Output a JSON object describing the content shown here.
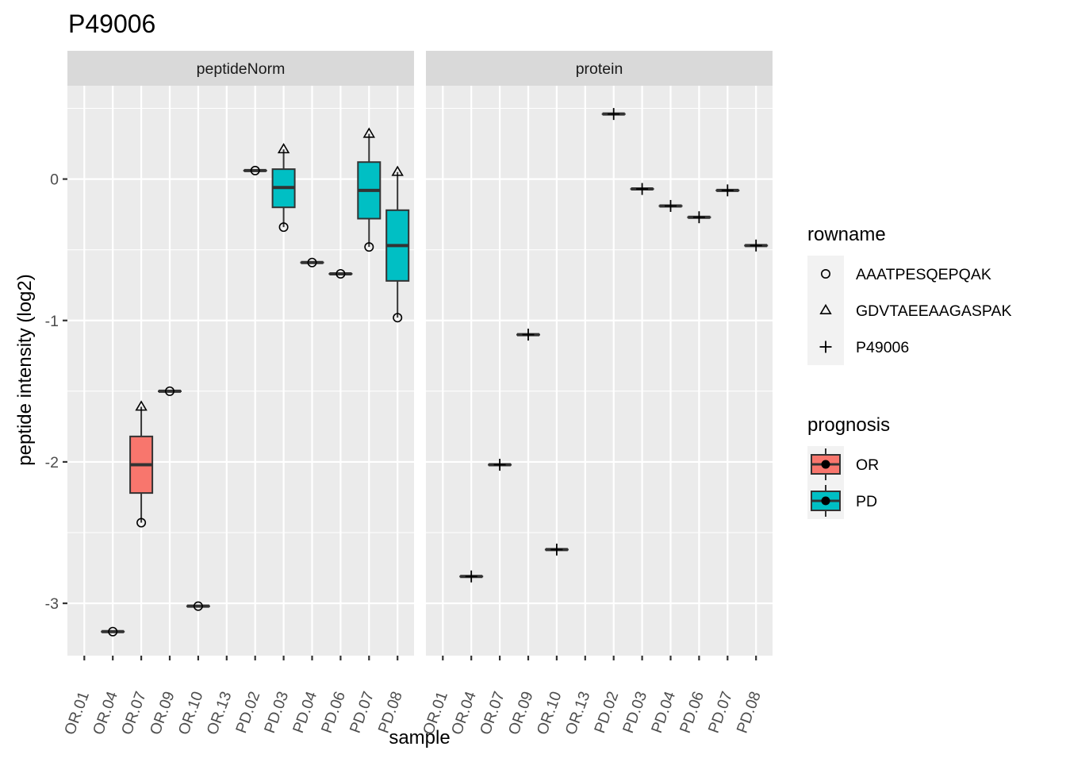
{
  "chart_data": {
    "type": "box",
    "title": "P49006",
    "xlabel": "sample",
    "ylabel": "peptide intensity (log2)",
    "ylim": [
      -3.37,
      0.66
    ],
    "y_ticks": [
      0,
      -1,
      -2,
      -3
    ],
    "y_tick_labels": [
      "0",
      "-1",
      "-2",
      "-3"
    ],
    "categories": [
      "OR.01",
      "OR.04",
      "OR.07",
      "OR.09",
      "OR.10",
      "OR.13",
      "PD.02",
      "PD.03",
      "PD.04",
      "PD.06",
      "PD.07",
      "PD.08"
    ],
    "colors": {
      "OR": "#f8766d",
      "PD": "#00bfc4"
    },
    "facets": [
      {
        "label": "peptideNorm",
        "boxes": [
          {
            "sample": "OR.04",
            "group": "OR",
            "min": -3.2,
            "q1": -3.2,
            "median": -3.2,
            "q3": -3.2,
            "max": -3.2
          },
          {
            "sample": "OR.07",
            "group": "OR",
            "min": -2.43,
            "q1": -2.22,
            "median": -2.02,
            "q3": -1.82,
            "max": -1.61
          },
          {
            "sample": "OR.09",
            "group": "OR",
            "min": -1.5,
            "q1": -1.5,
            "median": -1.5,
            "q3": -1.5,
            "max": -1.5
          },
          {
            "sample": "OR.10",
            "group": "OR",
            "min": -3.02,
            "q1": -3.02,
            "median": -3.02,
            "q3": -3.02,
            "max": -3.02
          },
          {
            "sample": "PD.02",
            "group": "PD",
            "min": 0.06,
            "q1": 0.06,
            "median": 0.06,
            "q3": 0.06,
            "max": 0.06
          },
          {
            "sample": "PD.03",
            "group": "PD",
            "min": -0.34,
            "q1": -0.2,
            "median": -0.06,
            "q3": 0.07,
            "max": 0.21
          },
          {
            "sample": "PD.04",
            "group": "PD",
            "min": -0.59,
            "q1": -0.59,
            "median": -0.59,
            "q3": -0.59,
            "max": -0.59
          },
          {
            "sample": "PD.06",
            "group": "PD",
            "min": -0.67,
            "q1": -0.67,
            "median": -0.67,
            "q3": -0.67,
            "max": -0.67
          },
          {
            "sample": "PD.07",
            "group": "PD",
            "min": -0.48,
            "q1": -0.28,
            "median": -0.08,
            "q3": 0.12,
            "max": 0.32
          },
          {
            "sample": "PD.08",
            "group": "PD",
            "min": -0.98,
            "q1": -0.72,
            "median": -0.47,
            "q3": -0.22,
            "max": 0.05
          }
        ],
        "points": [
          {
            "sample": "OR.04",
            "y": -3.2,
            "shape": "circle"
          },
          {
            "sample": "OR.07",
            "y": -2.43,
            "shape": "circle"
          },
          {
            "sample": "OR.07",
            "y": -1.61,
            "shape": "triangle"
          },
          {
            "sample": "OR.09",
            "y": -1.5,
            "shape": "circle"
          },
          {
            "sample": "OR.10",
            "y": -3.02,
            "shape": "circle"
          },
          {
            "sample": "PD.02",
            "y": 0.06,
            "shape": "circle"
          },
          {
            "sample": "PD.03",
            "y": -0.34,
            "shape": "circle"
          },
          {
            "sample": "PD.03",
            "y": 0.21,
            "shape": "triangle"
          },
          {
            "sample": "PD.04",
            "y": -0.59,
            "shape": "circle"
          },
          {
            "sample": "PD.06",
            "y": -0.67,
            "shape": "circle"
          },
          {
            "sample": "PD.07",
            "y": -0.48,
            "shape": "circle"
          },
          {
            "sample": "PD.07",
            "y": 0.32,
            "shape": "triangle"
          },
          {
            "sample": "PD.08",
            "y": -0.98,
            "shape": "circle"
          },
          {
            "sample": "PD.08",
            "y": 0.05,
            "shape": "triangle"
          }
        ]
      },
      {
        "label": "protein",
        "boxes": [
          {
            "sample": "OR.04",
            "group": "OR",
            "min": -2.81,
            "q1": -2.81,
            "median": -2.81,
            "q3": -2.81,
            "max": -2.81
          },
          {
            "sample": "OR.07",
            "group": "OR",
            "min": -2.02,
            "q1": -2.02,
            "median": -2.02,
            "q3": -2.02,
            "max": -2.02
          },
          {
            "sample": "OR.09",
            "group": "OR",
            "min": -1.1,
            "q1": -1.1,
            "median": -1.1,
            "q3": -1.1,
            "max": -1.1
          },
          {
            "sample": "OR.10",
            "group": "OR",
            "min": -2.62,
            "q1": -2.62,
            "median": -2.62,
            "q3": -2.62,
            "max": -2.62
          },
          {
            "sample": "PD.02",
            "group": "PD",
            "min": 0.46,
            "q1": 0.46,
            "median": 0.46,
            "q3": 0.46,
            "max": 0.46
          },
          {
            "sample": "PD.03",
            "group": "PD",
            "min": -0.07,
            "q1": -0.07,
            "median": -0.07,
            "q3": -0.07,
            "max": -0.07
          },
          {
            "sample": "PD.04",
            "group": "PD",
            "min": -0.19,
            "q1": -0.19,
            "median": -0.19,
            "q3": -0.19,
            "max": -0.19
          },
          {
            "sample": "PD.06",
            "group": "PD",
            "min": -0.27,
            "q1": -0.27,
            "median": -0.27,
            "q3": -0.27,
            "max": -0.27
          },
          {
            "sample": "PD.07",
            "group": "PD",
            "min": -0.08,
            "q1": -0.08,
            "median": -0.08,
            "q3": -0.08,
            "max": -0.08
          },
          {
            "sample": "PD.08",
            "group": "PD",
            "min": -0.47,
            "q1": -0.47,
            "median": -0.47,
            "q3": -0.47,
            "max": -0.47
          }
        ],
        "points": [
          {
            "sample": "OR.04",
            "y": -2.81,
            "shape": "plus"
          },
          {
            "sample": "OR.07",
            "y": -2.02,
            "shape": "plus"
          },
          {
            "sample": "OR.09",
            "y": -1.1,
            "shape": "plus"
          },
          {
            "sample": "OR.10",
            "y": -2.62,
            "shape": "plus"
          },
          {
            "sample": "PD.02",
            "y": 0.46,
            "shape": "plus"
          },
          {
            "sample": "PD.03",
            "y": -0.07,
            "shape": "plus"
          },
          {
            "sample": "PD.04",
            "y": -0.19,
            "shape": "plus"
          },
          {
            "sample": "PD.06",
            "y": -0.27,
            "shape": "plus"
          },
          {
            "sample": "PD.07",
            "y": -0.08,
            "shape": "plus"
          },
          {
            "sample": "PD.08",
            "y": -0.47,
            "shape": "plus"
          }
        ]
      }
    ],
    "legends": [
      {
        "title": "rowname",
        "items": [
          {
            "label": "AAATPESQEPQAK",
            "shape": "circle"
          },
          {
            "label": "GDVTAEEAAGASPAK",
            "shape": "triangle"
          },
          {
            "label": "P49006",
            "shape": "plus"
          }
        ]
      },
      {
        "title": "prognosis",
        "items": [
          {
            "label": "OR",
            "color": "#f8766d"
          },
          {
            "label": "PD",
            "color": "#00bfc4"
          }
        ]
      }
    ],
    "legend_position": "right",
    "grid": true
  }
}
